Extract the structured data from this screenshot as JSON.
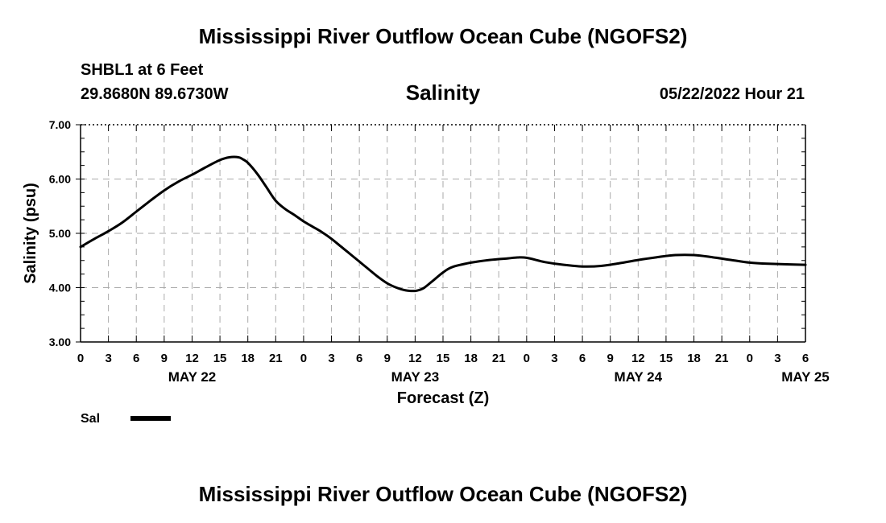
{
  "figure": {
    "title_top": "Mississippi River Outflow Ocean Cube (NGOFS2)",
    "title_bottom": "Mississippi River Outflow Ocean Cube (NGOFS2)",
    "station": "SHBL1 at 6 Feet",
    "coordinates": "29.8680N  89.6730W",
    "valid_time": "05/22/2022 Hour 21"
  },
  "chart_data": {
    "type": "line",
    "title": "Salinity",
    "xlabel": "Forecast (Z)",
    "ylabel": "Salinity (psu)",
    "xlim": [
      0,
      78
    ],
    "ylim": [
      3.0,
      7.0
    ],
    "grid": true,
    "y_ticks": [
      "3.00",
      "4.00",
      "5.00",
      "6.00",
      "7.00"
    ],
    "x_tick_labels": [
      "0",
      "3",
      "6",
      "9",
      "12",
      "15",
      "18",
      "21",
      "0",
      "3",
      "6",
      "9",
      "12",
      "15",
      "18",
      "21",
      "0",
      "3",
      "6",
      "9",
      "12",
      "15",
      "18",
      "21",
      "0",
      "3",
      "6"
    ],
    "date_labels": [
      {
        "label": "MAY 22",
        "hour": 12
      },
      {
        "label": "MAY 23",
        "hour": 36
      },
      {
        "label": "MAY 24",
        "hour": 60
      },
      {
        "label": "MAY 25",
        "hour": 78
      }
    ],
    "legend": {
      "position": "bottom-left",
      "entries": [
        {
          "name": "Sal",
          "color": "#000000"
        }
      ]
    },
    "series": [
      {
        "name": "Sal",
        "x": [
          0,
          1.5,
          3,
          4.5,
          6,
          7.5,
          9,
          10.5,
          12,
          13.5,
          15,
          16,
          17,
          17.5,
          18,
          19,
          20,
          21,
          22,
          23,
          24,
          25,
          26,
          27,
          28,
          29,
          30,
          31,
          32,
          33,
          34,
          35,
          36,
          36.5,
          37,
          38,
          39,
          40,
          42,
          44,
          46,
          47,
          48,
          50,
          52,
          54,
          56,
          58,
          60,
          62,
          64,
          66,
          68,
          70,
          72,
          74,
          76,
          78
        ],
        "values": [
          4.75,
          4.9,
          5.04,
          5.2,
          5.4,
          5.6,
          5.79,
          5.95,
          6.08,
          6.22,
          6.35,
          6.4,
          6.4,
          6.36,
          6.3,
          6.1,
          5.85,
          5.6,
          5.45,
          5.34,
          5.22,
          5.12,
          5.02,
          4.9,
          4.76,
          4.62,
          4.48,
          4.34,
          4.2,
          4.08,
          4.0,
          3.95,
          3.94,
          3.96,
          4.0,
          4.14,
          4.28,
          4.38,
          4.46,
          4.51,
          4.54,
          4.555,
          4.55,
          4.47,
          4.42,
          4.39,
          4.4,
          4.45,
          4.51,
          4.56,
          4.6,
          4.6,
          4.56,
          4.51,
          4.46,
          4.44,
          4.43,
          4.42
        ]
      }
    ]
  }
}
